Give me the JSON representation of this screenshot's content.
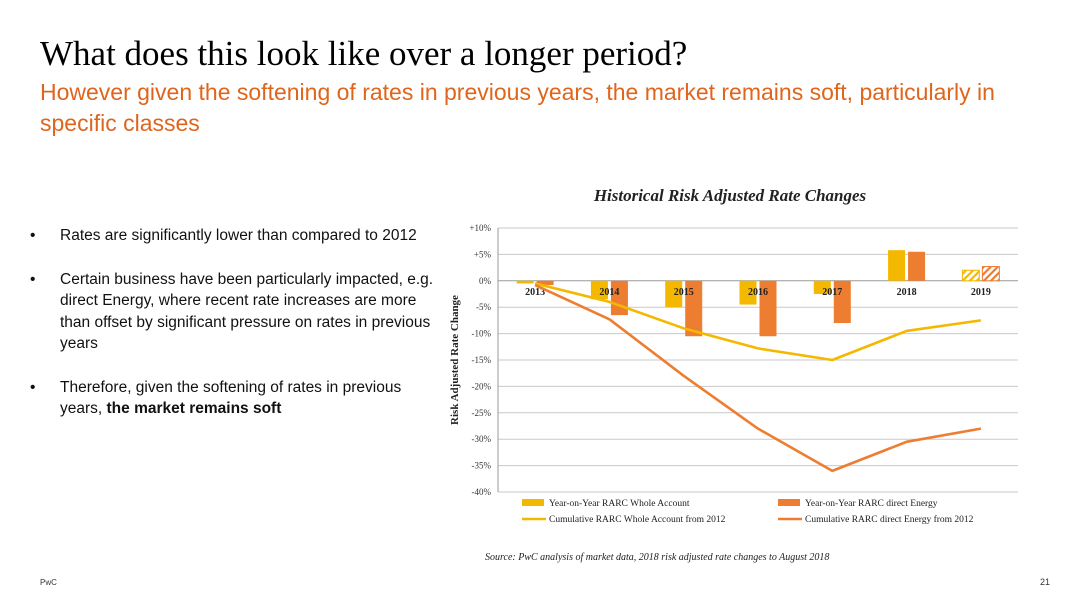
{
  "slide": {
    "title": "What does this look like over a longer period?",
    "subtitle": "However given the softening of rates in previous years, the market remains soft, particularly in specific classes",
    "bullets": [
      {
        "text": "Rates are significantly lower than compared to 2012",
        "bold": ""
      },
      {
        "text": "Certain business have been particularly impacted, e.g. direct Energy, where recent rate increases are more than offset by significant pressure on rates in previous years",
        "bold": ""
      },
      {
        "text": "Therefore, given the softening of rates in previous years, ",
        "bold": "the market remains soft"
      }
    ],
    "source": "Source: PwC analysis of market data, 2018 risk adjusted rate changes to August 2018",
    "footer_left": "PwC",
    "page_number": "21"
  },
  "chart_data": {
    "type": "bar",
    "title": "Historical Risk Adjusted Rate Changes",
    "ylabel": "Risk Adjusted Rate Change",
    "xlabel": "",
    "ylim": [
      -40,
      10
    ],
    "yticks": [
      10,
      5,
      0,
      -5,
      -10,
      -15,
      -20,
      -25,
      -30,
      -35,
      -40
    ],
    "ytick_labels": [
      "+10%",
      "+5%",
      "0%",
      "-5%",
      "-10%",
      "-15%",
      "-20%",
      "-25%",
      "-30%",
      "-35%",
      "-40%"
    ],
    "categories": [
      "2013",
      "2014",
      "2015",
      "2016",
      "2017",
      "2018",
      "2019"
    ],
    "grid": true,
    "legend_position": "bottom",
    "hatched_categories": [
      "2019"
    ],
    "series": [
      {
        "name": "Year-on-Year RARC Whole Account",
        "kind": "bar",
        "color": "#f5b800",
        "values": [
          -0.5,
          -3.5,
          -5,
          -4.5,
          -2.5,
          5.8,
          2
        ]
      },
      {
        "name": "Year-on-Year RARC direct Energy",
        "kind": "bar",
        "color": "#ed7d31",
        "values": [
          -0.8,
          -6.5,
          -10.5,
          -10.5,
          -8,
          5.5,
          2.7
        ]
      },
      {
        "name": "Cumulative RARC Whole Account from 2012",
        "kind": "line",
        "color": "#f5b800",
        "values": [
          -0.5,
          -4,
          -9,
          -12.8,
          -15,
          -9.5,
          -7.5
        ]
      },
      {
        "name": "Cumulative RARC direct Energy from 2012",
        "kind": "line",
        "color": "#ed7d31",
        "values": [
          -0.8,
          -7.3,
          -18,
          -28,
          -36,
          -30.5,
          -28
        ]
      }
    ]
  }
}
